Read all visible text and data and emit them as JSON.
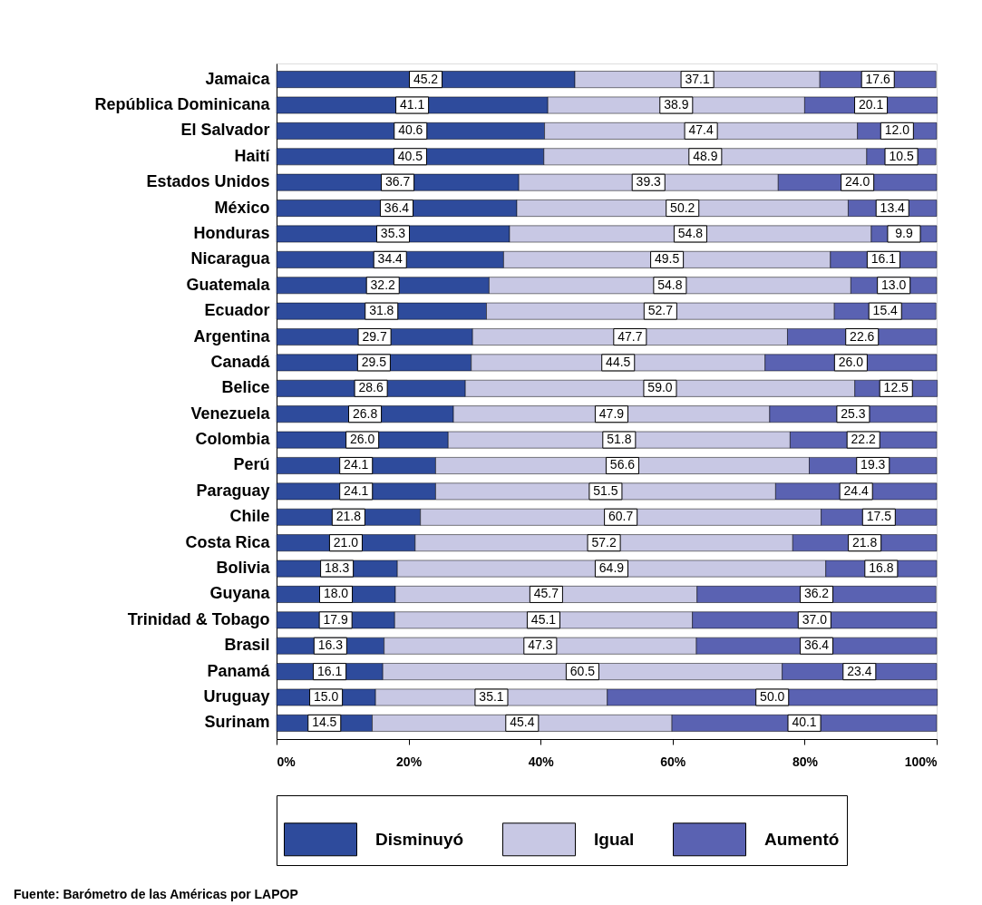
{
  "chart_data": {
    "type": "bar",
    "orientation": "horizontal",
    "stacked": true,
    "categories": [
      "Jamaica",
      "República Dominicana",
      "El Salvador",
      "Haití",
      "Estados Unidos",
      "México",
      "Honduras",
      "Nicaragua",
      "Guatemala",
      "Ecuador",
      "Argentina",
      "Canadá",
      "Belice",
      "Venezuela",
      "Colombia",
      "Perú",
      "Paraguay",
      "Chile",
      "Costa Rica",
      "Bolivia",
      "Guyana",
      "Trinidad & Tobago",
      "Brasil",
      "Panamá",
      "Uruguay",
      "Surinam"
    ],
    "series": [
      {
        "name": "Disminuyó",
        "color": "#2e4b9c",
        "values": [
          45.2,
          41.1,
          40.6,
          40.5,
          36.7,
          36.4,
          35.3,
          34.4,
          32.2,
          31.8,
          29.7,
          29.5,
          28.6,
          26.8,
          26.0,
          24.1,
          24.1,
          21.8,
          21.0,
          18.3,
          18.0,
          17.9,
          16.3,
          16.1,
          15.0,
          14.5
        ],
        "value_labels": [
          "45.2",
          "41.1",
          "40.6",
          "40.5",
          "36.7",
          "36.4",
          "35.3",
          "34.4",
          "32.2",
          "31.8",
          "29.7",
          "29.5",
          "28.6",
          "26.8",
          "26.0",
          "24.1",
          "24.1",
          "21.8",
          "21.0",
          "18.3",
          "18.0",
          "17.9",
          "16.3",
          "16.1",
          "15.0",
          "14.5"
        ]
      },
      {
        "name": "Igual",
        "color": "#c8c8e4",
        "values": [
          37.1,
          38.9,
          47.4,
          48.9,
          39.3,
          50.2,
          54.8,
          49.5,
          54.8,
          52.7,
          47.7,
          44.5,
          59.0,
          47.9,
          51.8,
          56.6,
          51.5,
          60.7,
          57.2,
          64.9,
          45.7,
          45.1,
          47.3,
          60.5,
          35.1,
          45.4
        ],
        "value_labels": [
          "37.1",
          "38.9",
          "47.4",
          "48.9",
          "39.3",
          "50.2",
          "54.8",
          "49.5",
          "54.8",
          "52.7",
          "47.7",
          "44.5",
          "59.0",
          "47.9",
          "51.8",
          "56.6",
          "51.5",
          "60.7",
          "57.2",
          "64.9",
          "45.7",
          "45.1",
          "47.3",
          "60.5",
          "35.1",
          "45.4"
        ]
      },
      {
        "name": "Aumentó",
        "color": "#5a62b2",
        "values": [
          17.6,
          20.1,
          12.0,
          10.5,
          24.0,
          13.4,
          9.9,
          16.1,
          13.0,
          15.4,
          22.6,
          26.0,
          12.5,
          25.3,
          22.2,
          19.3,
          24.4,
          17.5,
          21.8,
          16.8,
          36.2,
          37.0,
          36.4,
          23.4,
          50.0,
          40.1
        ],
        "value_labels": [
          "17.6",
          "20.1",
          "12.0",
          "10.5",
          "24.0",
          "13.4",
          "9.9",
          "16.1",
          "13.0",
          "15.4",
          "22.6",
          "26.0",
          "12.5",
          "25.3",
          "22.2",
          "19.3",
          "24.4",
          "17.5",
          "21.8",
          "16.8",
          "36.2",
          "37.0",
          "36.4",
          "23.4",
          "50.0",
          "40.1"
        ]
      }
    ],
    "xlim": [
      0,
      100
    ],
    "xticks": [
      {
        "value": 0,
        "label": "0%"
      },
      {
        "value": 20,
        "label": "20%"
      },
      {
        "value": 40,
        "label": "40%"
      },
      {
        "value": 60,
        "label": "60%"
      },
      {
        "value": 80,
        "label": "80%"
      },
      {
        "value": 100,
        "label": "100%"
      }
    ],
    "grid": false,
    "legend": "bottom",
    "annotations": [
      "Fuente: Barómetro de las Américas por LAPOP"
    ]
  }
}
